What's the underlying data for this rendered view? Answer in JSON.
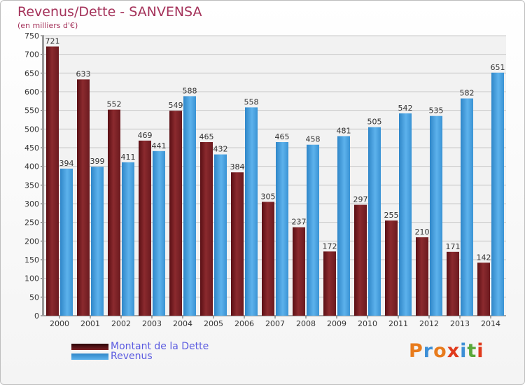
{
  "header": {
    "title": "Revenus/Dette - SANVENSA",
    "subtitle": "(en milliers d'€)"
  },
  "colors": {
    "dette": "#8b2a2e",
    "dette_dark": "#5a0f14",
    "revenus": "#4ea6e4",
    "revenus_dark": "#2f86c8",
    "title": "#a4325a",
    "legend_text": "#5a5ae0"
  },
  "chart_data": {
    "type": "bar",
    "title": "Revenus/Dette - SANVENSA",
    "subtitle": "(en milliers d'€)",
    "categories": [
      "2000",
      "2001",
      "2002",
      "2003",
      "2004",
      "2005",
      "2006",
      "2007",
      "2008",
      "2009",
      "2010",
      "2011",
      "2012",
      "2013",
      "2014"
    ],
    "series": [
      {
        "name": "Montant de la Dette",
        "values": [
          721,
          633,
          552,
          469,
          549,
          465,
          384,
          305,
          237,
          172,
          297,
          255,
          210,
          171,
          142
        ]
      },
      {
        "name": "Revenus",
        "values": [
          394,
          399,
          411,
          441,
          588,
          432,
          558,
          465,
          458,
          481,
          505,
          542,
          535,
          582,
          651
        ]
      }
    ],
    "ylim": [
      0,
      750
    ],
    "yticks": [
      0,
      50,
      100,
      150,
      200,
      250,
      300,
      350,
      400,
      450,
      500,
      550,
      600,
      650,
      700,
      750
    ],
    "grid": true,
    "legend_position": "bottom-left"
  },
  "legend": {
    "items": [
      {
        "label": "Montant de la Dette"
      },
      {
        "label": "Revenus"
      }
    ]
  },
  "logo": {
    "letters": [
      "P",
      "r",
      "o",
      "x",
      "i",
      "t",
      "i"
    ],
    "colors": [
      "#e87b1c",
      "#3d8fd6",
      "#e87b1c",
      "#e03a1c",
      "#3d8fd6",
      "#5aa83a",
      "#e03a1c"
    ]
  }
}
